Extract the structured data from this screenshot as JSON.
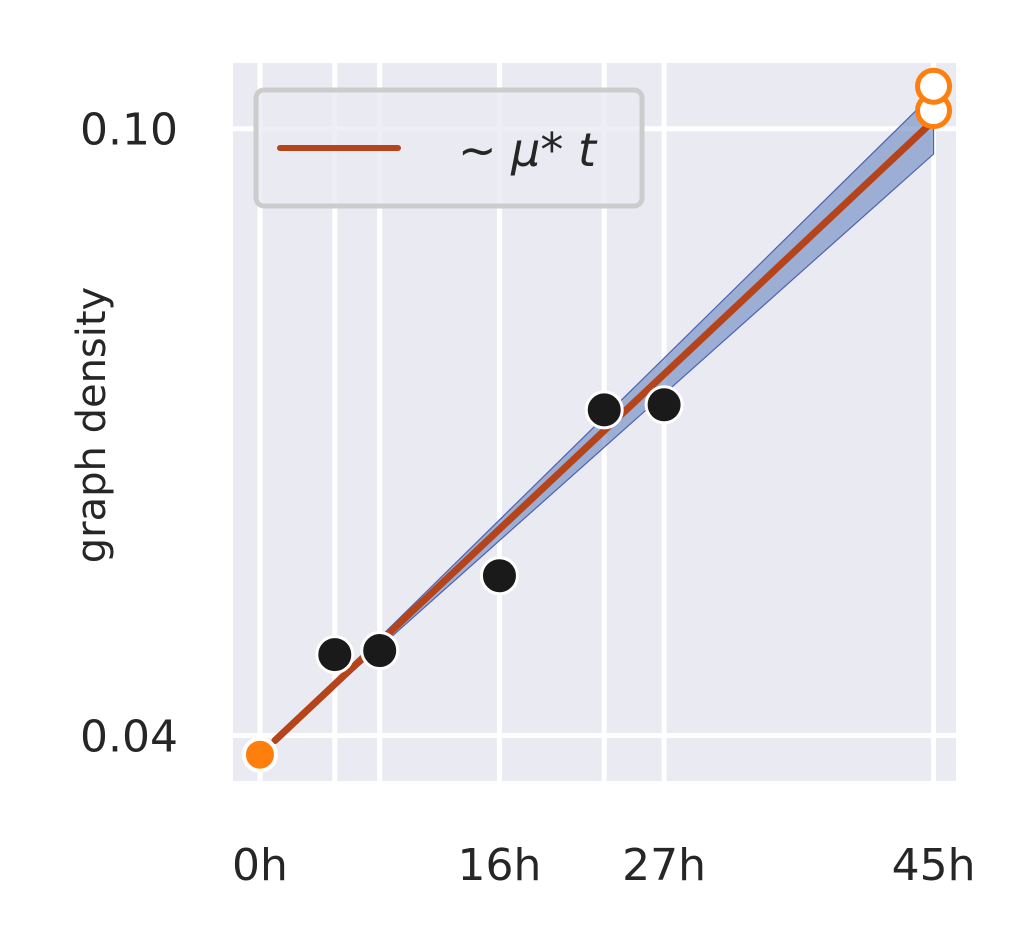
{
  "chart_data": {
    "type": "line",
    "ylabel": "graph density",
    "x_ticks": [
      {
        "value": 0,
        "label": "0h"
      },
      {
        "value": 16,
        "label": "16h"
      },
      {
        "value": 27,
        "label": "27h"
      },
      {
        "value": 45,
        "label": "45h"
      }
    ],
    "x_minor_gridlines": [
      5,
      8,
      23
    ],
    "y_ticks": [
      {
        "value": 0.04,
        "label": "0.04"
      },
      {
        "value": 0.1,
        "label": "0.10"
      }
    ],
    "xlim": [
      -1.8,
      46.5
    ],
    "ylim": [
      0.0355,
      0.1065
    ],
    "grid": true,
    "legend": {
      "position": "top-left",
      "entries": [
        "~ μ* t"
      ]
    },
    "series": [
      {
        "kind": "fit-line",
        "color": "#b5441b",
        "points": [
          [
            1,
            0.0395
          ],
          [
            45,
            0.1008
          ]
        ]
      },
      {
        "kind": "confidence-band",
        "color": "#7f97c9",
        "upper": [
          [
            1,
            0.0395
          ],
          [
            45,
            0.1035
          ]
        ],
        "lower": [
          [
            1,
            0.0395
          ],
          [
            45,
            0.0975
          ]
        ]
      },
      {
        "kind": "observed",
        "color": "#1a1a1a",
        "points": [
          [
            5,
            0.048
          ],
          [
            8,
            0.0484
          ],
          [
            16,
            0.0558
          ],
          [
            23,
            0.0722
          ],
          [
            27,
            0.0727
          ]
        ]
      },
      {
        "kind": "endpoints-filled",
        "color": "#ff7f0e",
        "points": [
          [
            0,
            0.0381
          ]
        ]
      },
      {
        "kind": "endpoints-open",
        "color": "#ff7f0e",
        "points": [
          [
            45,
            0.1018
          ],
          [
            45,
            0.1042
          ]
        ]
      }
    ],
    "colors": {
      "plot_bg": "#eaeaf2",
      "grid": "#ffffff",
      "legend_border": "#cccccc"
    }
  }
}
